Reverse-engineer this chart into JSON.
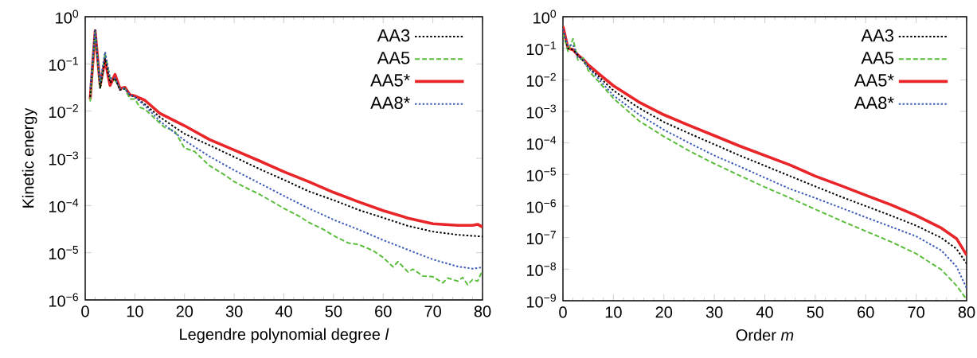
{
  "chart_data": [
    {
      "type": "line",
      "xlabel": "Legendre polynomial degree *l*",
      "ylabel": "Kinetic energy",
      "log": "y",
      "legend": "top right",
      "grid": false,
      "xlim": [
        0,
        80
      ],
      "xticks": [
        0,
        10,
        20,
        30,
        40,
        50,
        60,
        70,
        80
      ],
      "ylim": [
        1e-06,
        1
      ],
      "yticks": [
        {
          "value": 1,
          "label": "10$^{0}$"
        },
        {
          "value": 0.1,
          "label": "10$^{−1}$"
        },
        {
          "value": 0.01,
          "label": "10$^{−2}$"
        },
        {
          "value": 0.001,
          "label": "10$^{−3}$"
        },
        {
          "value": 0.0001,
          "label": "10$^{−4}$"
        },
        {
          "value": 1e-05,
          "label": "10$^{−5}$"
        },
        {
          "value": 1e-06,
          "label": "10$^{−6}$"
        }
      ],
      "series": [
        {
          "name": "AA3",
          "color": "#000000",
          "line_style": "dotted",
          "x": [
            1,
            2,
            3,
            4,
            5,
            6,
            7,
            8,
            9,
            10,
            12,
            15,
            20,
            25,
            30,
            35,
            40,
            45,
            50,
            55,
            60,
            65,
            70,
            75,
            80
          ],
          "values": [
            0.02,
            0.55,
            0.03,
            0.13,
            0.04,
            0.05,
            0.028,
            0.03,
            0.022,
            0.02,
            0.014,
            0.0075,
            0.0033,
            0.0019,
            0.00107,
            0.0006,
            0.00035,
            0.0002,
            0.00013,
            8.1e-05,
            5.5e-05,
            3.7e-05,
            2.8e-05,
            2.4e-05,
            2.2e-05
          ]
        },
        {
          "name": "AA5",
          "color": "#5bbd3c",
          "line_style": "dashed",
          "x": [
            1,
            2,
            3,
            4,
            5,
            6,
            7,
            8,
            9,
            10,
            11,
            12,
            14,
            16,
            18,
            20,
            22,
            25,
            28,
            30,
            33,
            35,
            38,
            40,
            43,
            45,
            48,
            50,
            53,
            55,
            58,
            60,
            62,
            63,
            65,
            66,
            68,
            70,
            72,
            73,
            75,
            76,
            77,
            78,
            79,
            80
          ],
          "values": [
            0.016,
            0.5,
            0.03,
            0.17,
            0.05,
            0.045,
            0.03,
            0.03,
            0.018,
            0.018,
            0.012,
            0.011,
            0.007,
            0.0045,
            0.0038,
            0.00165,
            0.0014,
            0.0007,
            0.00045,
            0.00032,
            0.00022,
            0.000175,
            0.000115,
            8.7e-05,
            6e-05,
            4.4e-05,
            3.1e-05,
            2.3e-05,
            1.6e-05,
            1.5e-05,
            1.1e-05,
            7.9e-06,
            5e-06,
            6.5e-06,
            3.9e-06,
            4.5e-06,
            3.2e-06,
            3.1e-06,
            2.3e-06,
            2.9e-06,
            2.5e-06,
            3e-06,
            2.1e-06,
            2.7e-06,
            2.5e-06,
            4.2e-06
          ]
        },
        {
          "name": "AA5*",
          "color": "#e8262a",
          "line_style": "solid",
          "x": [
            1,
            2,
            3,
            4,
            5,
            6,
            7,
            8,
            9,
            10,
            12,
            15,
            20,
            25,
            30,
            35,
            40,
            45,
            50,
            55,
            60,
            65,
            70,
            75,
            78,
            79,
            80
          ],
          "values": [
            0.018,
            0.5,
            0.035,
            0.12,
            0.035,
            0.06,
            0.03,
            0.032,
            0.022,
            0.021,
            0.017,
            0.009,
            0.0049,
            0.0025,
            0.0015,
            0.00089,
            0.00052,
            0.00032,
            0.00019,
            0.00012,
            7.8e-05,
            5.4e-05,
            4.1e-05,
            3.8e-05,
            3.8e-05,
            4e-05,
            3.5e-05
          ]
        },
        {
          "name": "AA8*",
          "color": "#3b5bb5",
          "line_style": "dotted",
          "x": [
            1,
            2,
            3,
            4,
            5,
            6,
            7,
            8,
            9,
            10,
            12,
            15,
            20,
            25,
            30,
            35,
            40,
            45,
            50,
            55,
            60,
            65,
            70,
            75,
            78,
            80
          ],
          "values": [
            0.03,
            0.5,
            0.04,
            0.18,
            0.05,
            0.05,
            0.03,
            0.03,
            0.022,
            0.02,
            0.013,
            0.0062,
            0.0024,
            0.0011,
            0.00056,
            0.0003,
            0.00016,
            8.7e-05,
            5e-05,
            3.1e-05,
            1.85e-05,
            1.15e-05,
            7.2e-06,
            5.1e-06,
            4.6e-06,
            4.9e-06
          ]
        }
      ]
    },
    {
      "type": "line",
      "xlabel": "Order *m*",
      "log": "y",
      "legend": "top right",
      "grid": false,
      "xlim": [
        0,
        80
      ],
      "xticks": [
        0,
        10,
        20,
        30,
        40,
        50,
        60,
        70,
        80
      ],
      "x": [
        0,
        1,
        2,
        3,
        4,
        5,
        7,
        10,
        15,
        20,
        25,
        30,
        35,
        40,
        45,
        50,
        55,
        60,
        65,
        70,
        75,
        78,
        80
      ],
      "ylim": [
        1e-09,
        1
      ],
      "yticks": [
        {
          "value": 1,
          "label": "10$^{0}$"
        },
        {
          "value": 0.1,
          "label": "10$^{−1}$"
        },
        {
          "value": 0.01,
          "label": "10$^{−2}$"
        },
        {
          "value": 0.001,
          "label": "10$^{−3}$"
        },
        {
          "value": 0.0001,
          "label": "10$^{−4}$"
        },
        {
          "value": 1e-05,
          "label": "10$^{−5}$"
        },
        {
          "value": 1e-06,
          "label": "10$^{−6}$"
        },
        {
          "value": 1e-07,
          "label": "10$^{−7}$"
        },
        {
          "value": 1e-08,
          "label": "10$^{−8}$"
        },
        {
          "value": 1e-09,
          "label": "10$^{−9}$"
        }
      ],
      "series": [
        {
          "name": "AA3",
          "color": "#000000",
          "line_style": "dotted",
          "values": [
            0.4,
            0.1,
            0.09,
            0.06,
            0.04,
            0.025,
            0.013,
            0.0046,
            0.0013,
            0.00046,
            0.0002,
            9e-05,
            4e-05,
            1.9e-05,
            8.9e-06,
            4.2e-06,
            2e-06,
            1e-06,
            5e-07,
            2.4e-07,
            9.8e-08,
            4.4e-08,
            1.5e-08
          ]
        },
        {
          "name": "AA5",
          "color": "#5bbd3c",
          "line_style": "dashed",
          "values": [
            0.3,
            0.08,
            0.2,
            0.04,
            0.05,
            0.02,
            0.009,
            0.0026,
            0.00051,
            0.00016,
            5.6e-05,
            2.2e-05,
            9.3e-06,
            4e-06,
            1.8e-06,
            7.9e-07,
            3.5e-07,
            1.6e-07,
            7.4e-08,
            3.1e-08,
            9.6e-09,
            3e-09,
            1.1e-09
          ]
        },
        {
          "name": "AA5*",
          "color": "#e8262a",
          "line_style": "solid",
          "values": [
            0.5,
            0.1,
            0.09,
            0.06,
            0.045,
            0.03,
            0.016,
            0.0065,
            0.002,
            0.00078,
            0.00036,
            0.00017,
            8e-05,
            4e-05,
            2e-05,
            8.9e-06,
            4.5e-06,
            2.2e-06,
            1.1e-06,
            5e-07,
            2e-07,
            9.3e-08,
            2.8e-08
          ]
        },
        {
          "name": "AA8*",
          "color": "#3b5bb5",
          "line_style": "dotted",
          "values": [
            0.4,
            0.12,
            0.13,
            0.05,
            0.045,
            0.025,
            0.011,
            0.0032,
            0.00081,
            0.00026,
            0.0001,
            4e-05,
            1.8e-05,
            7.9e-06,
            3.5e-06,
            1.8e-06,
            8.9e-07,
            4.4e-07,
            2.2e-07,
            1.1e-07,
            3.9e-08,
            1.2e-08,
            2.5e-09
          ]
        }
      ]
    }
  ]
}
